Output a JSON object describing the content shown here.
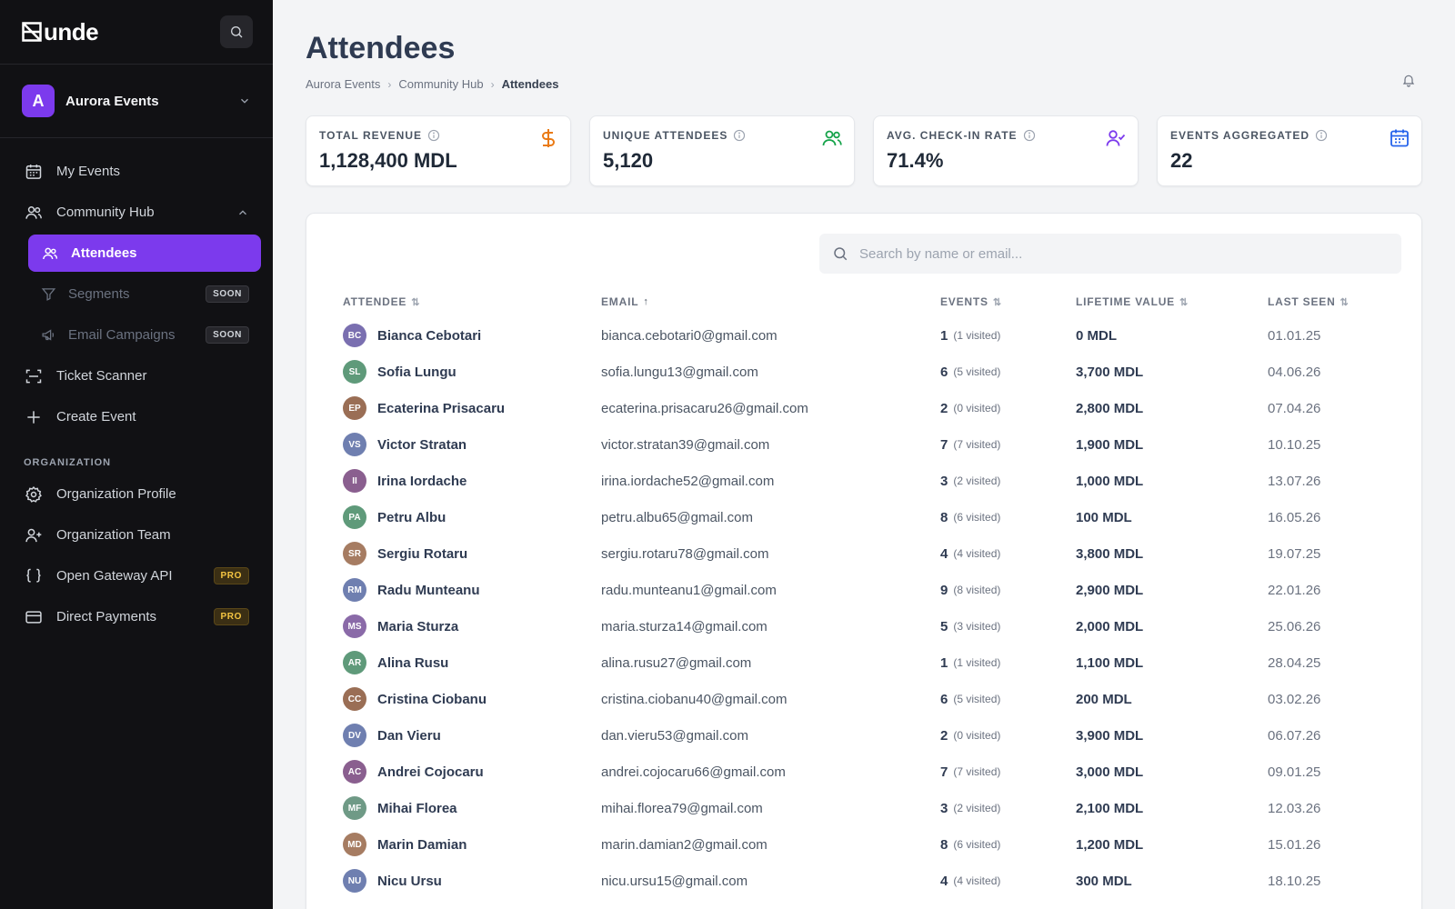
{
  "app": {
    "logo_text": "unde"
  },
  "org": {
    "initial": "A",
    "name": "Aurora Events"
  },
  "nav": {
    "my_events": "My Events",
    "community_hub": "Community Hub",
    "attendees": "Attendees",
    "segments": "Segments",
    "email_campaigns": "Email Campaigns",
    "ticket_scanner": "Ticket Scanner",
    "create_event": "Create Event",
    "org_section": "ORGANIZATION",
    "org_profile": "Organization Profile",
    "org_team": "Organization Team",
    "gateway_api": "Open Gateway API",
    "direct_payments": "Direct Payments",
    "badge_soon": "SOON",
    "badge_pro": "PRO"
  },
  "header": {
    "title": "Attendees",
    "breadcrumb": [
      "Aurora Events",
      "Community Hub",
      "Attendees"
    ]
  },
  "stats": [
    {
      "label": "TOTAL REVENUE",
      "value": "1,128,400 MDL",
      "icon": "dollar-icon",
      "color": "#ea7a14"
    },
    {
      "label": "UNIQUE ATTENDEES",
      "value": "5,120",
      "icon": "users-icon",
      "color": "#16a34a"
    },
    {
      "label": "AVG. CHECK-IN RATE",
      "value": "71.4%",
      "icon": "user-check-icon",
      "color": "#7c3aed"
    },
    {
      "label": "EVENTS AGGREGATED",
      "value": "22",
      "icon": "calendar-icon",
      "color": "#2563eb"
    }
  ],
  "search": {
    "placeholder": "Search by name or email..."
  },
  "table": {
    "headers": {
      "attendee": "ATTENDEE",
      "email": "EMAIL",
      "events": "EVENTS",
      "ltv": "LIFETIME VALUE",
      "last_seen": "LAST SEEN"
    },
    "rows": [
      {
        "initials": "BC",
        "color": "#7a6fb0",
        "name": "Bianca Cebotari",
        "email": "bianca.cebotari0@gmail.com",
        "events": "1",
        "visited": "(1 visited)",
        "ltv": "0 MDL",
        "last_seen": "01.01.25"
      },
      {
        "initials": "SL",
        "color": "#5f9a7a",
        "name": "Sofia Lungu",
        "email": "sofia.lungu13@gmail.com",
        "events": "6",
        "visited": "(5 visited)",
        "ltv": "3,700 MDL",
        "last_seen": "04.06.26"
      },
      {
        "initials": "EP",
        "color": "#9a6e55",
        "name": "Ecaterina Prisacaru",
        "email": "ecaterina.prisacaru26@gmail.com",
        "events": "2",
        "visited": "(0 visited)",
        "ltv": "2,800 MDL",
        "last_seen": "07.04.26"
      },
      {
        "initials": "VS",
        "color": "#6f7fb0",
        "name": "Victor Stratan",
        "email": "victor.stratan39@gmail.com",
        "events": "7",
        "visited": "(7 visited)",
        "ltv": "1,900 MDL",
        "last_seen": "10.10.25"
      },
      {
        "initials": "II",
        "color": "#8a5f8f",
        "name": "Irina Iordache",
        "email": "irina.iordache52@gmail.com",
        "events": "3",
        "visited": "(2 visited)",
        "ltv": "1,000 MDL",
        "last_seen": "13.07.26"
      },
      {
        "initials": "PA",
        "color": "#5f9a7a",
        "name": "Petru Albu",
        "email": "petru.albu65@gmail.com",
        "events": "8",
        "visited": "(6 visited)",
        "ltv": "100 MDL",
        "last_seen": "16.05.26"
      },
      {
        "initials": "SR",
        "color": "#a67c62",
        "name": "Sergiu Rotaru",
        "email": "sergiu.rotaru78@gmail.com",
        "events": "4",
        "visited": "(4 visited)",
        "ltv": "3,800 MDL",
        "last_seen": "19.07.25"
      },
      {
        "initials": "RM",
        "color": "#6f7fb0",
        "name": "Radu Munteanu",
        "email": "radu.munteanu1@gmail.com",
        "events": "9",
        "visited": "(8 visited)",
        "ltv": "2,900 MDL",
        "last_seen": "22.01.26"
      },
      {
        "initials": "MS",
        "color": "#8a6aa8",
        "name": "Maria Sturza",
        "email": "maria.sturza14@gmail.com",
        "events": "5",
        "visited": "(3 visited)",
        "ltv": "2,000 MDL",
        "last_seen": "25.06.26"
      },
      {
        "initials": "AR",
        "color": "#5f9a7a",
        "name": "Alina Rusu",
        "email": "alina.rusu27@gmail.com",
        "events": "1",
        "visited": "(1 visited)",
        "ltv": "1,100 MDL",
        "last_seen": "28.04.25"
      },
      {
        "initials": "CC",
        "color": "#9a6e55",
        "name": "Cristina Ciobanu",
        "email": "cristina.ciobanu40@gmail.com",
        "events": "6",
        "visited": "(5 visited)",
        "ltv": "200 MDL",
        "last_seen": "03.02.26"
      },
      {
        "initials": "DV",
        "color": "#6f7fb0",
        "name": "Dan Vieru",
        "email": "dan.vieru53@gmail.com",
        "events": "2",
        "visited": "(0 visited)",
        "ltv": "3,900 MDL",
        "last_seen": "06.07.26"
      },
      {
        "initials": "AC",
        "color": "#8a5f8f",
        "name": "Andrei Cojocaru",
        "email": "andrei.cojocaru66@gmail.com",
        "events": "7",
        "visited": "(7 visited)",
        "ltv": "3,000 MDL",
        "last_seen": "09.01.25"
      },
      {
        "initials": "MF",
        "color": "#6f9a86",
        "name": "Mihai Florea",
        "email": "mihai.florea79@gmail.com",
        "events": "3",
        "visited": "(2 visited)",
        "ltv": "2,100 MDL",
        "last_seen": "12.03.26"
      },
      {
        "initials": "MD",
        "color": "#a67c62",
        "name": "Marin Damian",
        "email": "marin.damian2@gmail.com",
        "events": "8",
        "visited": "(6 visited)",
        "ltv": "1,200 MDL",
        "last_seen": "15.01.26"
      },
      {
        "initials": "NU",
        "color": "#6f7fb0",
        "name": "Nicu Ursu",
        "email": "nicu.ursu15@gmail.com",
        "events": "4",
        "visited": "(4 visited)",
        "ltv": "300 MDL",
        "last_seen": "18.10.25"
      }
    ]
  }
}
